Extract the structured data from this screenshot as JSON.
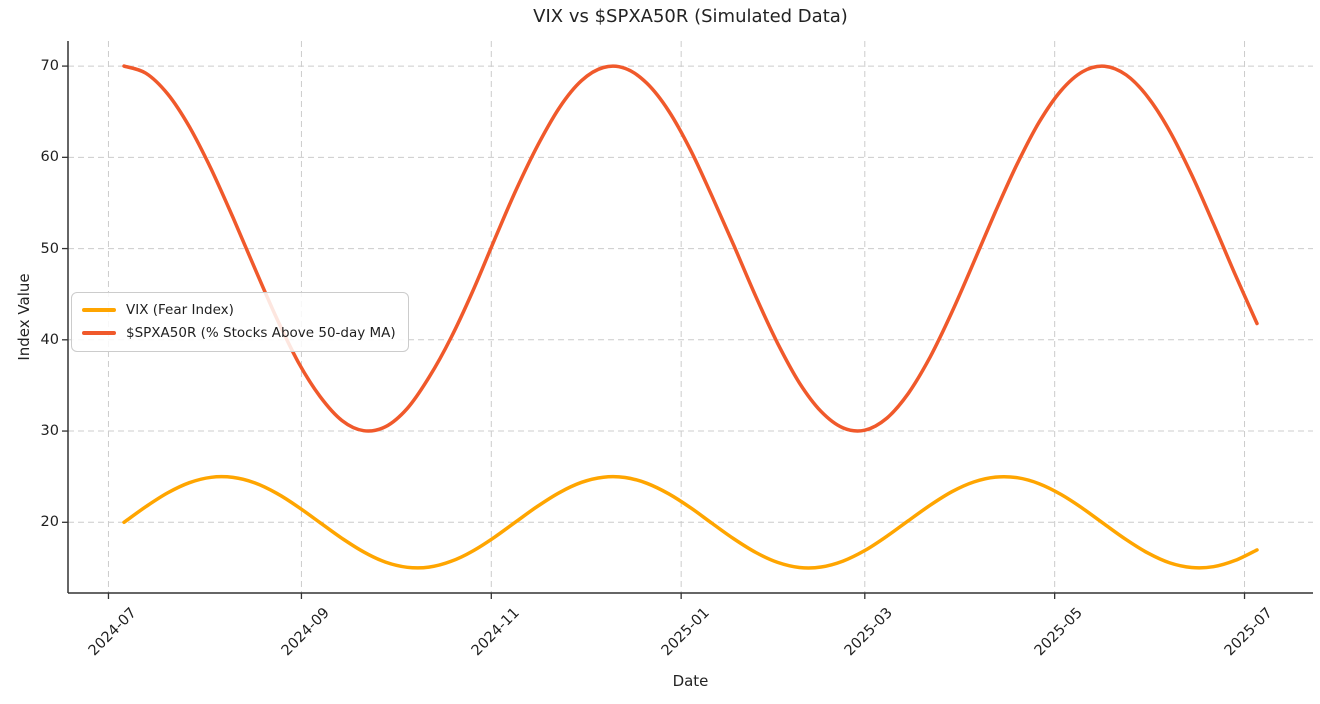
{
  "chart_data": {
    "type": "line",
    "title": "VIX vs $SPXA50R (Simulated Data)",
    "xlabel": "Date",
    "ylabel": "Index Value",
    "grid": true,
    "grid_style": "dashed",
    "legend_position": "center left",
    "ylim": [
      12.25,
      72.75
    ],
    "xlim": [
      "2024-06-18",
      "2025-07-23"
    ],
    "yticks": [
      20,
      30,
      40,
      50,
      60,
      70
    ],
    "xticks": [
      {
        "label": "2024-07",
        "date": "2024-07-01"
      },
      {
        "label": "2024-09",
        "date": "2024-09-01"
      },
      {
        "label": "2024-11",
        "date": "2024-11-01"
      },
      {
        "label": "2025-01",
        "date": "2025-01-01"
      },
      {
        "label": "2025-03",
        "date": "2025-03-01"
      },
      {
        "label": "2025-05",
        "date": "2025-05-01"
      },
      {
        "label": "2025-07",
        "date": "2025-07-01"
      }
    ],
    "x_dates": [
      "2024-07-06",
      "2024-07-13",
      "2024-07-20",
      "2024-07-27",
      "2024-08-03",
      "2024-08-10",
      "2024-08-17",
      "2024-08-24",
      "2024-08-31",
      "2024-09-07",
      "2024-09-14",
      "2024-09-21",
      "2024-09-28",
      "2024-10-05",
      "2024-10-12",
      "2024-10-19",
      "2024-10-26",
      "2024-11-02",
      "2024-11-09",
      "2024-11-16",
      "2024-11-23",
      "2024-11-30",
      "2024-12-07",
      "2024-12-14",
      "2024-12-21",
      "2024-12-28",
      "2025-01-04",
      "2025-01-11",
      "2025-01-18",
      "2025-01-25",
      "2025-02-01",
      "2025-02-08",
      "2025-02-15",
      "2025-02-22",
      "2025-03-01",
      "2025-03-08",
      "2025-03-15",
      "2025-03-22",
      "2025-03-29",
      "2025-04-05",
      "2025-04-12",
      "2025-04-19",
      "2025-04-26",
      "2025-05-03",
      "2025-05-10",
      "2025-05-17",
      "2025-05-24",
      "2025-05-31",
      "2025-06-07",
      "2025-06-14",
      "2025-06-21",
      "2025-06-28",
      "2025-07-05"
    ],
    "series": [
      {
        "id": "vix",
        "name": "VIX (Fear Index)",
        "color": "#FFA500",
        "values": [
          20.0,
          21.71,
          23.22,
          24.34,
          24.93,
          24.92,
          24.32,
          23.19,
          21.67,
          19.96,
          18.25,
          16.75,
          15.64,
          15.07,
          15.09,
          15.71,
          16.84,
          18.36,
          20.08,
          21.79,
          23.28,
          24.38,
          24.94,
          24.91,
          24.27,
          23.12,
          21.6,
          19.87,
          18.17,
          16.69,
          15.6,
          15.05,
          15.1,
          15.75,
          16.91,
          18.45,
          20.17,
          21.87,
          23.35,
          24.42,
          24.95,
          24.89,
          24.23,
          23.06,
          21.52,
          19.79,
          18.09,
          16.62,
          15.55,
          15.04,
          15.13,
          15.82,
          16.97
        ]
      },
      {
        "id": "spxa50r",
        "name": "$SPXA50R (% Stocks Above 50-day MA)",
        "color": "#F0592B",
        "values": [
          70.0,
          69.22,
          66.95,
          63.35,
          58.71,
          53.4,
          47.84,
          42.4,
          37.54,
          33.78,
          31.16,
          30.04,
          30.48,
          32.48,
          35.89,
          40.19,
          45.3,
          50.95,
          56.46,
          61.37,
          65.51,
          68.41,
          69.85,
          69.75,
          68.11,
          65.08,
          60.81,
          55.67,
          50.28,
          44.73,
          39.62,
          35.28,
          32.13,
          30.34,
          30.09,
          31.39,
          34.14,
          38.13,
          43.04,
          48.49,
          54.06,
          59.3,
          63.85,
          67.29,
          69.4,
          69.99,
          69.02,
          66.58,
          62.85,
          58.11,
          52.73,
          47.15,
          41.79
        ]
      }
    ],
    "colors": {
      "text": "#232323",
      "spine": "#333333",
      "grid": "#cccccc",
      "background": "#ffffff"
    }
  }
}
